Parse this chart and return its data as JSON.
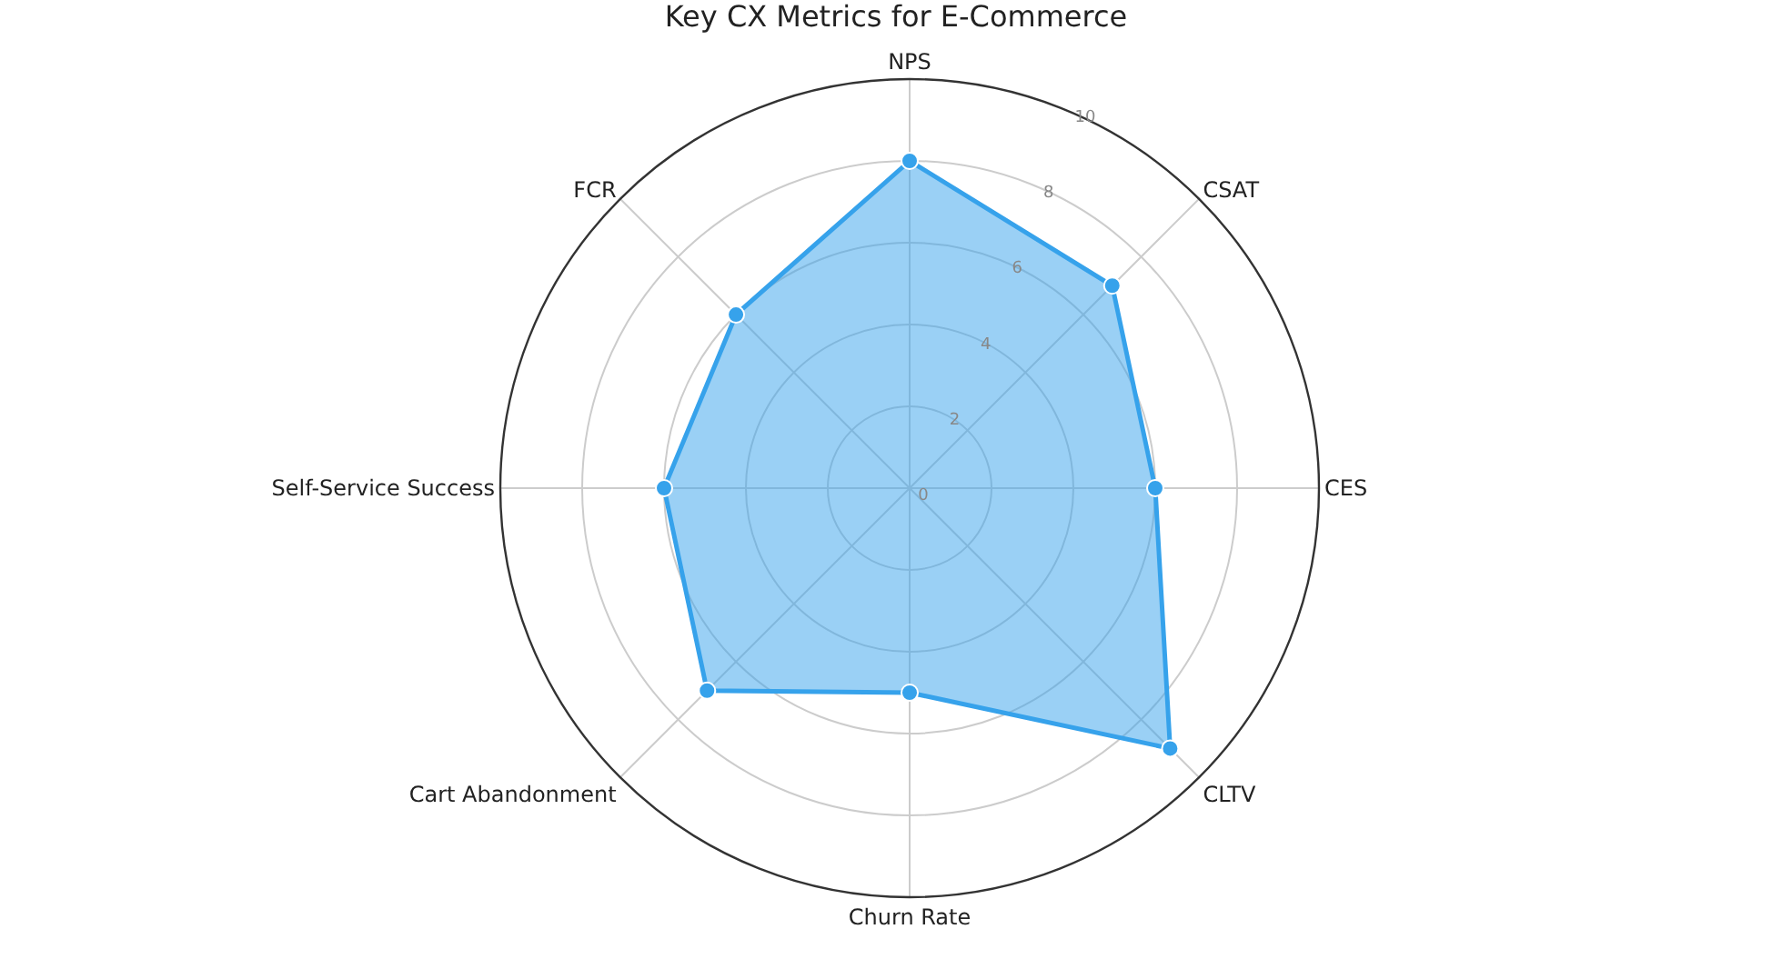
{
  "chart_data": {
    "type": "radar",
    "title": "Key CX Metrics for E-Commerce",
    "categories": [
      "NPS",
      "CSAT",
      "CES",
      "CLTV",
      "Churn Rate",
      "Cart Abandonment",
      "Self-Service Success",
      "FCR"
    ],
    "series": [
      {
        "color": "#36a2eb",
        "values": [
          8,
          7,
          6,
          9,
          5,
          7,
          6,
          6
        ]
      }
    ],
    "ylim": [
      0,
      10
    ],
    "yticks": [
      0,
      2,
      4,
      6,
      8,
      10
    ],
    "grid": true,
    "marker": "circle",
    "line_style": "solid"
  }
}
